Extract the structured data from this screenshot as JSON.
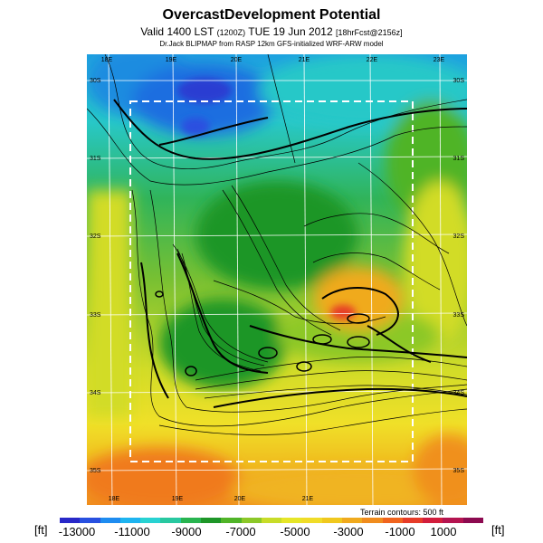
{
  "header": {
    "title": "OvercastDevelopment Potential",
    "valid_main": "Valid 1400 LST",
    "valid_utc": "(1200Z)",
    "valid_date": "TUE 19 Jun 2012",
    "valid_tag": "[18hrFcst@2156z]",
    "model_line": "Dr.Jack BLIPMAP from RASP 12km GFS-initialized WRF-ARW model"
  },
  "map": {
    "lon_labels_top": [
      "18E",
      "19E",
      "20E",
      "21E",
      "22E",
      "23E"
    ],
    "lon_labels_bottom": [
      "18E",
      "19E",
      "20E",
      "21E"
    ],
    "lat_labels_left": [
      "30S",
      "31S",
      "32S",
      "33S",
      "34S",
      "35S"
    ],
    "lat_labels_right": [
      "30S",
      "31S",
      "32S",
      "33S",
      "34S",
      "35S"
    ],
    "colors": {
      "sea": "#f0b020",
      "dashed_box": "#ffffff",
      "grid": "#ffffff",
      "contour": "#000000"
    }
  },
  "legend": {
    "unit_left": "[ft]",
    "unit_right": "[ft]",
    "terrain_note": "Terrain contours: 500 ft",
    "ticks": [
      "-13000",
      "-11000",
      "-9000",
      "-7000",
      "-5000",
      "-3000",
      "-1000",
      "1000"
    ],
    "colors": [
      "#2828c8",
      "#2850e0",
      "#1e8cf0",
      "#1eb4f0",
      "#28d2d2",
      "#28c8a0",
      "#28b450",
      "#1e9628",
      "#50b428",
      "#8cc828",
      "#c8dc28",
      "#e6e628",
      "#f0dc28",
      "#f0c81e",
      "#f0aa1e",
      "#f08c1e",
      "#f0641e",
      "#e63c28",
      "#d21e3c",
      "#b41450",
      "#8c0a50"
    ]
  }
}
